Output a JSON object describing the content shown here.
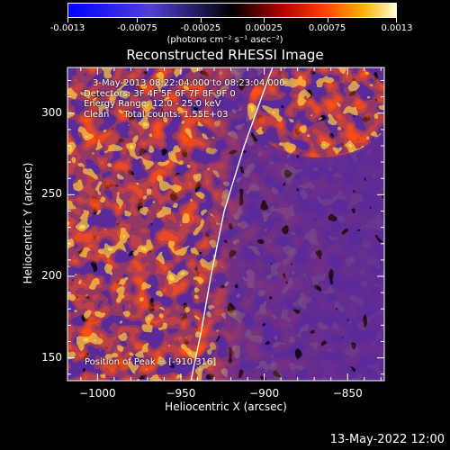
{
  "colorbar": {
    "ticks": [
      "-0.0013",
      "-0.00075",
      "-0.00025",
      "0.00025",
      "0.00075",
      "0.0013"
    ],
    "tick_values": [
      -0.0013,
      -0.00075,
      -0.00025,
      0.00025,
      0.00075,
      0.0013
    ],
    "range": [
      -0.0013,
      0.0013
    ],
    "units": "(photons cm⁻² s⁻¹ asec⁻²)"
  },
  "chart_data": {
    "type": "heatmap",
    "title": "Reconstructed RHESSI Image",
    "xlabel": "Heliocentric X (arcsec)",
    "ylabel": "Heliocentric Y (arcsec)",
    "xlim": [
      -1018,
      -828
    ],
    "ylim": [
      136,
      328
    ],
    "x_ticks": [
      -1000,
      -950,
      -900,
      -850
    ],
    "x_tick_labels": [
      "−1000",
      "−950",
      "−900",
      "−850"
    ],
    "y_ticks": [
      150,
      200,
      250,
      300
    ],
    "y_tick_labels": [
      "150",
      "200",
      "250",
      "300"
    ],
    "limb_curve": [
      [
        -944,
        136
      ],
      [
        -938,
        165
      ],
      [
        -932,
        200
      ],
      [
        -924,
        240
      ],
      [
        -912,
        280
      ],
      [
        -898,
        320
      ],
      [
        -895,
        328
      ]
    ],
    "peak_position": [
      -910,
      316
    ],
    "colorscale": [
      "#0000ff",
      "#5040d8",
      "#000000",
      "#b00000",
      "#ff4000",
      "#ffb000",
      "#ffffd0"
    ]
  },
  "annotations": {
    "line1": "3-May-2013 08:22:04.000 to 08:23:04.000",
    "line2": "Detectors: 3F 4F 5F 6F 7F 8F 9F 0",
    "line3": "Energy Range: 12.0 - 25.0 keV",
    "line4": "Clean     Total counts: 1.55E+03",
    "peak": "Position of Peak = [-910,316]"
  },
  "footer": {
    "date": "13-May-2022 12:00"
  }
}
